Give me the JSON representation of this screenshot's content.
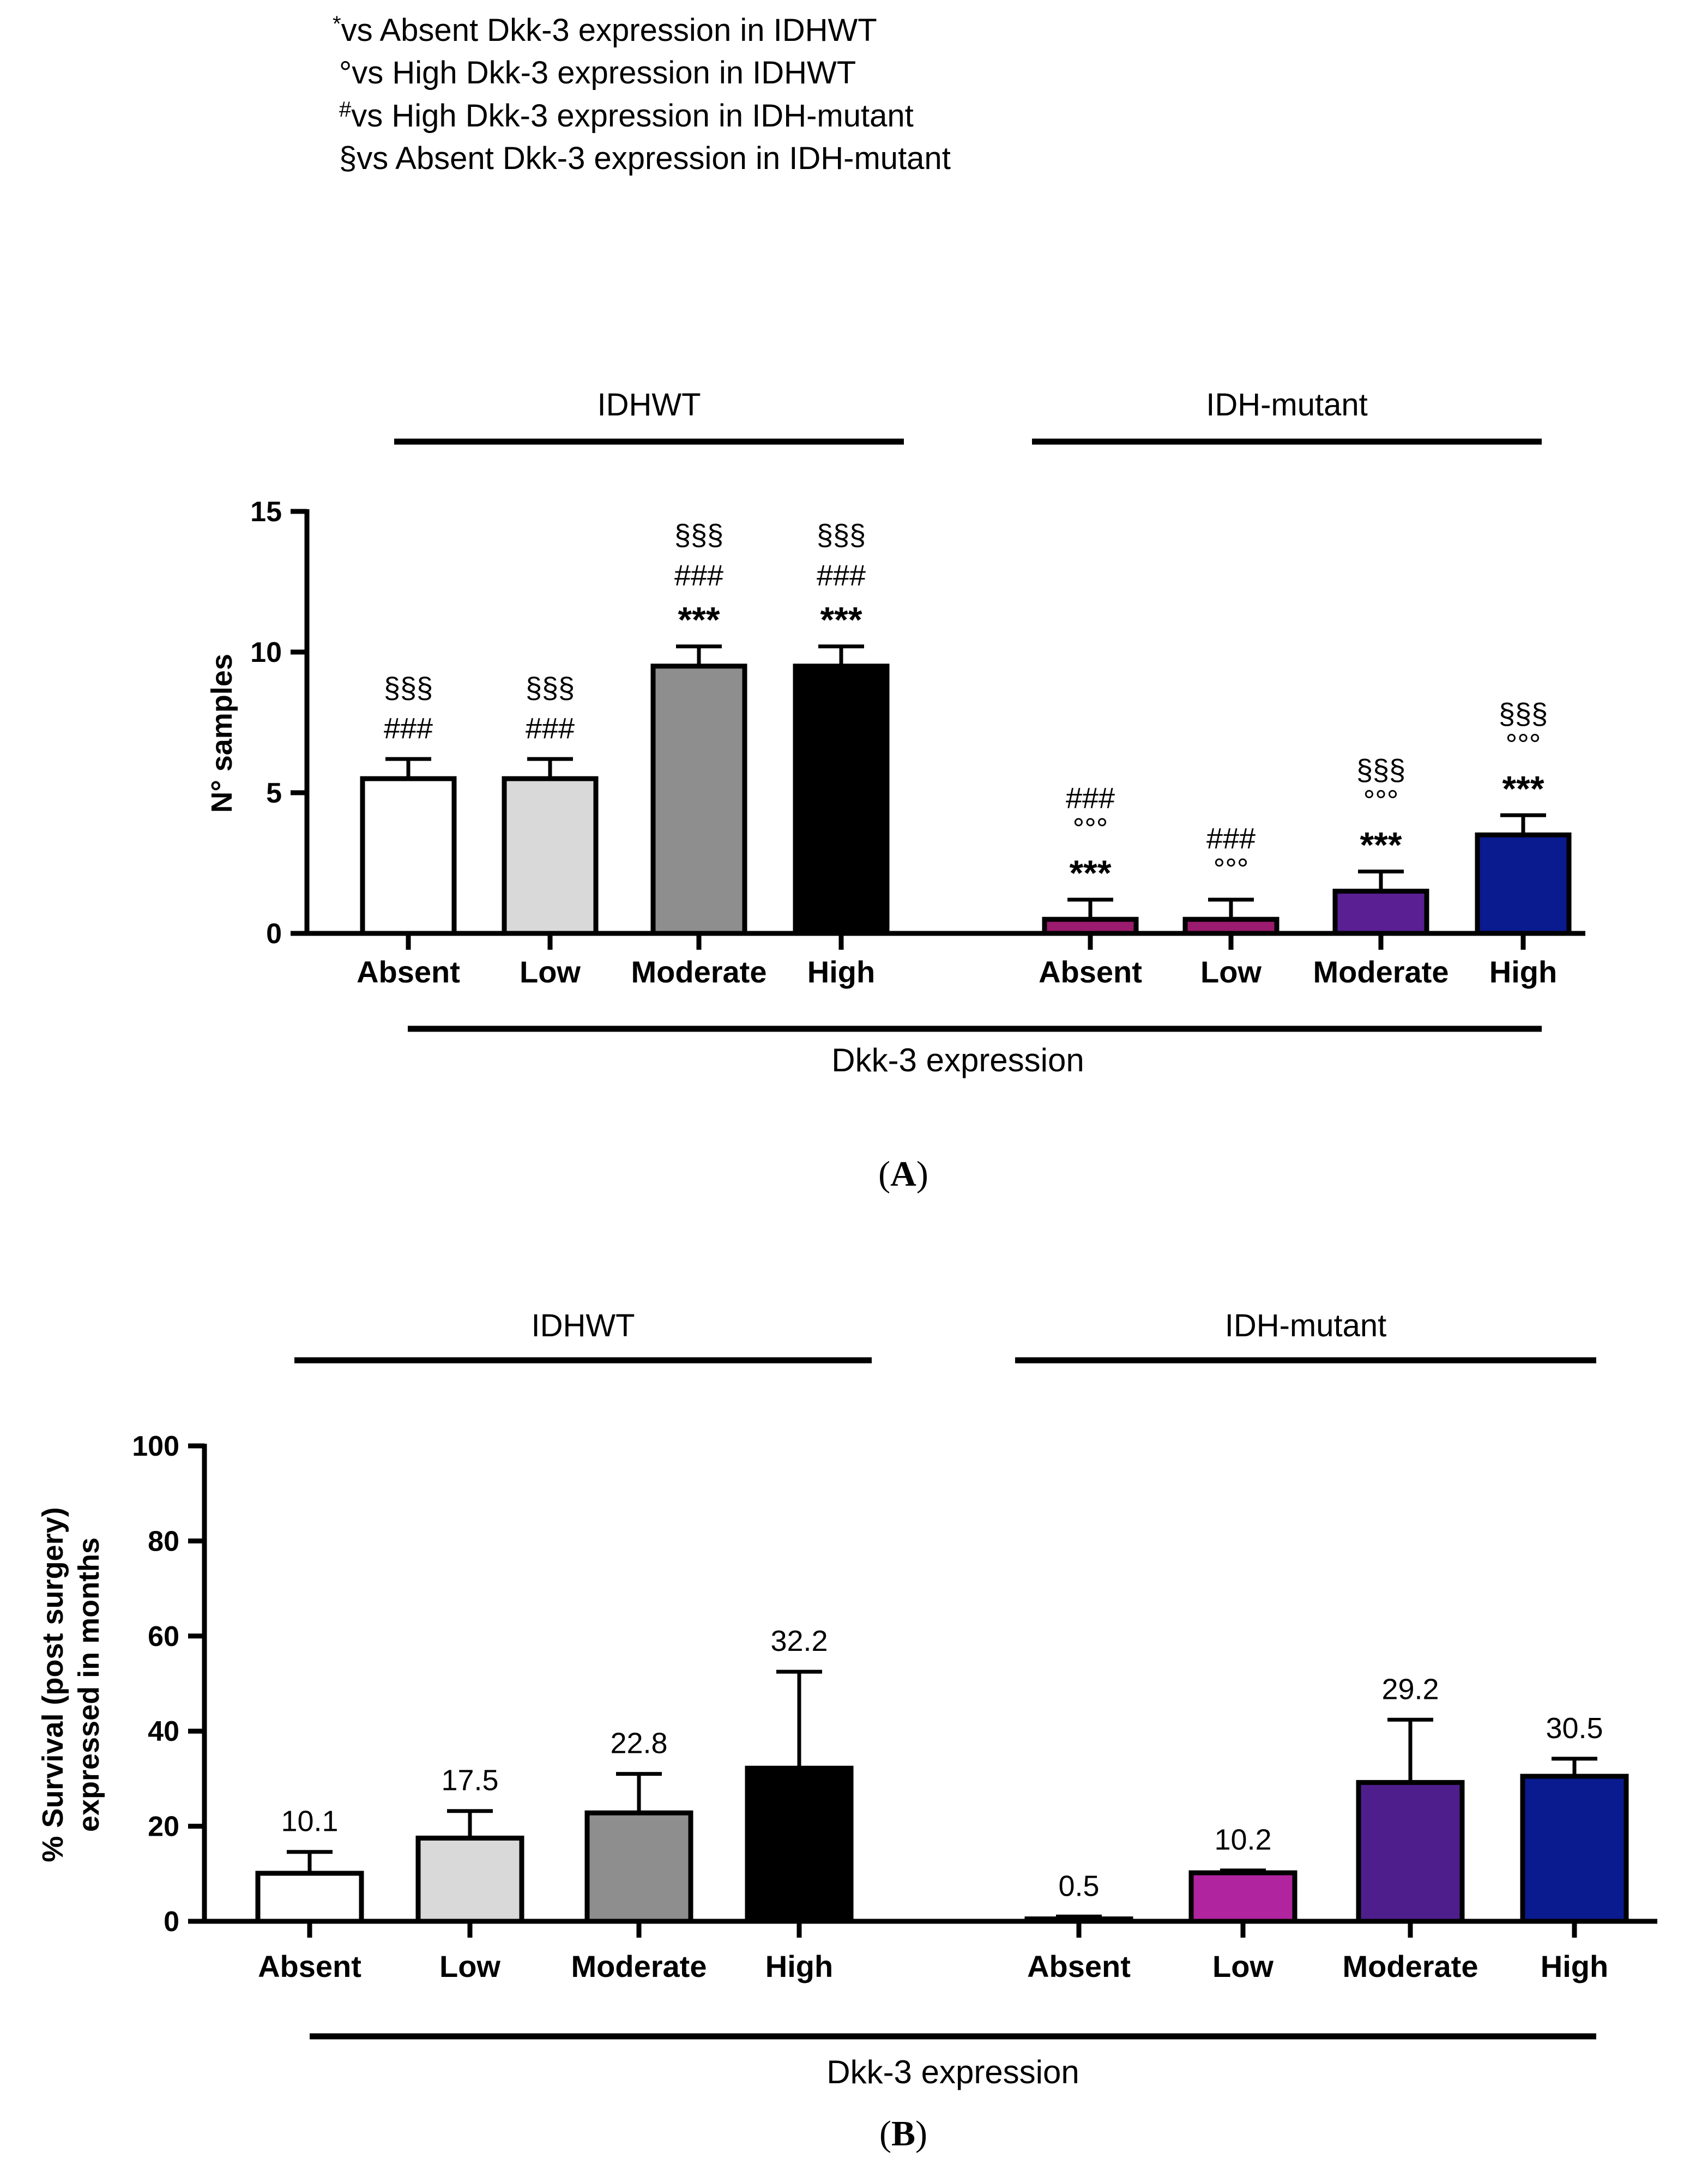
{
  "legend": [
    {
      "mark": "*",
      "text": "vs Absent Dkk-3 expression in IDHWT"
    },
    {
      "mark": "°",
      "text": "vs High Dkk-3 expression in IDHWT"
    },
    {
      "mark": "#",
      "text": "vs High Dkk-3 expression in IDH-mutant"
    },
    {
      "mark": "§",
      "text": "vs Absent Dkk-3 expression in IDH-mutant"
    }
  ],
  "colors": {
    "IDHWT": [
      "#ffffff",
      "#d9d9d9",
      "#8e8e8e",
      "#000000"
    ],
    "IDH-mutant_A": [
      "#9b1b6e",
      "#9b1b6e",
      "#5a1f92",
      "#0a1a8f"
    ],
    "IDH-mutant_B": [
      "#8d1e60",
      "#b0259f",
      "#4e1e8c",
      "#0a1a8f"
    ]
  },
  "chart_data": [
    {
      "type": "bar",
      "panel": "(A)",
      "panel_letter": "A",
      "groups": [
        "IDHWT",
        "IDH-mutant"
      ],
      "categories": [
        "Absent",
        "Low",
        "Moderate",
        "High"
      ],
      "series": [
        {
          "name": "IDHWT",
          "values": [
            5.5,
            5.5,
            9.5,
            9.5
          ],
          "errors": [
            0.7,
            0.7,
            0.7,
            0.7
          ]
        },
        {
          "name": "IDH-mutant",
          "values": [
            0.5,
            0.5,
            1.5,
            3.5
          ],
          "errors": [
            0.7,
            0.7,
            0.7,
            0.7
          ]
        }
      ],
      "annotations": {
        "IDHWT": [
          [
            "§§§",
            "###"
          ],
          [
            "§§§",
            "###"
          ],
          [
            "§§§",
            "###",
            "***"
          ],
          [
            "§§§",
            "###",
            "***"
          ]
        ],
        "IDH-mutant": [
          [
            "###",
            "°°°",
            "***"
          ],
          [
            "###",
            "°°°"
          ],
          [
            "§§§",
            "°°°",
            "***"
          ],
          [
            "§§§",
            "°°°",
            "***"
          ]
        ]
      },
      "ylabel": "N° samples",
      "xlabel": "Dkk-3 expression",
      "ylim": [
        0,
        15
      ],
      "yticks": [
        0,
        5,
        10,
        15
      ]
    },
    {
      "type": "bar",
      "panel": "(B)",
      "panel_letter": "B",
      "groups": [
        "IDHWT",
        "IDH-mutant"
      ],
      "categories": [
        "Absent",
        "Low",
        "Moderate",
        "High"
      ],
      "series": [
        {
          "name": "IDHWT",
          "values": [
            10.1,
            17.5,
            22.8,
            32.2
          ],
          "errors": [
            4.5,
            5.7,
            8.2,
            20.3
          ],
          "labels": [
            "10.1",
            "17.5",
            "22.8",
            "32.2"
          ]
        },
        {
          "name": "IDH-mutant",
          "values": [
            0.5,
            10.2,
            29.2,
            30.5
          ],
          "errors": [
            0.5,
            0.5,
            13.2,
            3.7
          ],
          "labels": [
            "0.5",
            "10.2",
            "29.2",
            "30.5"
          ]
        }
      ],
      "ylabel_lines": [
        "% Survival (post surgery)",
        "expressed in months"
      ],
      "xlabel": "Dkk-3 expression",
      "ylim": [
        0,
        100
      ],
      "yticks": [
        0,
        20,
        40,
        60,
        80,
        100
      ]
    }
  ]
}
